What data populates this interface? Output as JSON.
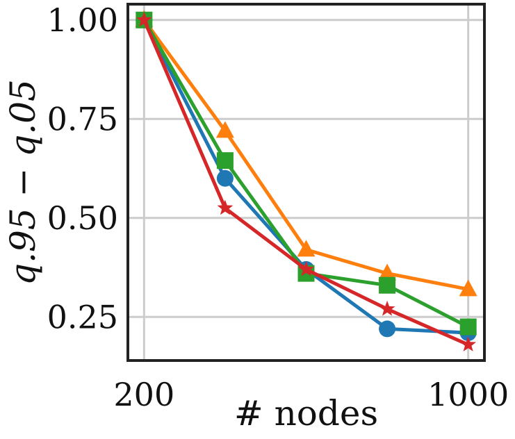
{
  "chart_data": {
    "type": "line",
    "x": [
      200,
      400,
      600,
      800,
      1000
    ],
    "series": [
      {
        "color": "#1f77b4",
        "marker": "circle",
        "values": [
          1.0,
          0.6,
          0.37,
          0.22,
          0.21
        ]
      },
      {
        "color": "#ff7f0e",
        "marker": "triangle",
        "values": [
          1.0,
          0.72,
          0.42,
          0.36,
          0.32
        ]
      },
      {
        "color": "#2ca02c",
        "marker": "square",
        "values": [
          1.0,
          0.645,
          0.36,
          0.33,
          0.225
        ]
      },
      {
        "color": "#d62728",
        "marker": "star",
        "values": [
          1.0,
          0.525,
          0.37,
          0.27,
          0.18
        ]
      }
    ],
    "xlabel": "# nodes",
    "ylabel": "q.95 − q.05",
    "x_ticks": [
      {
        "value": 200,
        "label": "200"
      },
      {
        "value": 1000,
        "label": "1000"
      }
    ],
    "y_ticks": [
      {
        "value": 0.25,
        "label": "0.25"
      },
      {
        "value": 0.5,
        "label": "0.50"
      },
      {
        "value": 0.75,
        "label": "0.75"
      },
      {
        "value": 1.0,
        "label": "1.00"
      }
    ],
    "xlim": [
      160,
      1040
    ],
    "ylim": [
      0.14,
      1.04
    ],
    "grid": true,
    "legend": "none"
  }
}
